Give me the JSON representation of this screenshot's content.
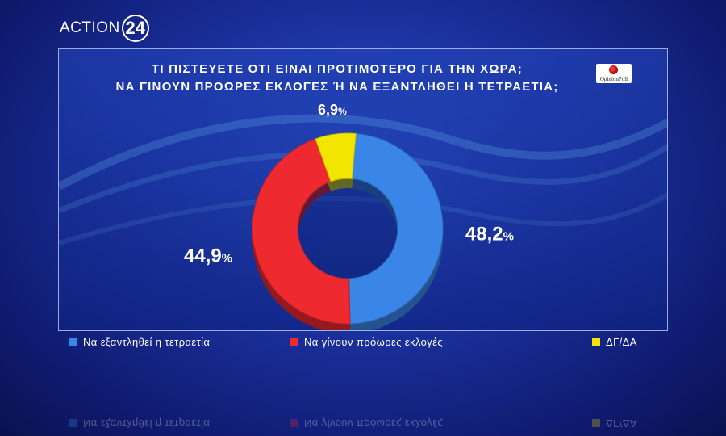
{
  "brand": {
    "text": "ACTION",
    "number": "24"
  },
  "logo": {
    "text": "OpinionPoll"
  },
  "colors": {
    "blue": "#3a86e8",
    "red": "#ee2a30",
    "yellow": "#f2e600"
  },
  "chart_data": {
    "type": "pie",
    "donut": true,
    "title_lines": [
      "ΤΙ ΠΙΣΤΕΥΕΤΕ ΟΤΙ ΕΙΝΑΙ ΠΡΟΤΙΜΟΤΕΡΟ ΓΙΑ ΤΗΝ ΧΩΡΑ;",
      "ΝΑ ΓΙΝΟΥΝ ΠΡΟΩΡΕΣ ΕΚΛΟΓΕΣ Ή ΝΑ ΕΞΑΝΤΛΗΘΕΙ Η ΤΕΤΡΑΕΤΙΑ;"
    ],
    "slices": [
      {
        "name": "Να εξαντληθεί η τετραετία",
        "value": 48.2,
        "label": "48,2",
        "unit": "%",
        "color": "#3a86e8"
      },
      {
        "name": "Να γίνουν πρόωρες εκλογές",
        "value": 44.9,
        "label": "44,9",
        "unit": "%",
        "color": "#ee2a30"
      },
      {
        "name": "ΔΓ/ΔΑ",
        "value": 6.9,
        "label": "6,9",
        "unit": "%",
        "color": "#f2e600"
      }
    ],
    "legend_position": "bottom"
  }
}
